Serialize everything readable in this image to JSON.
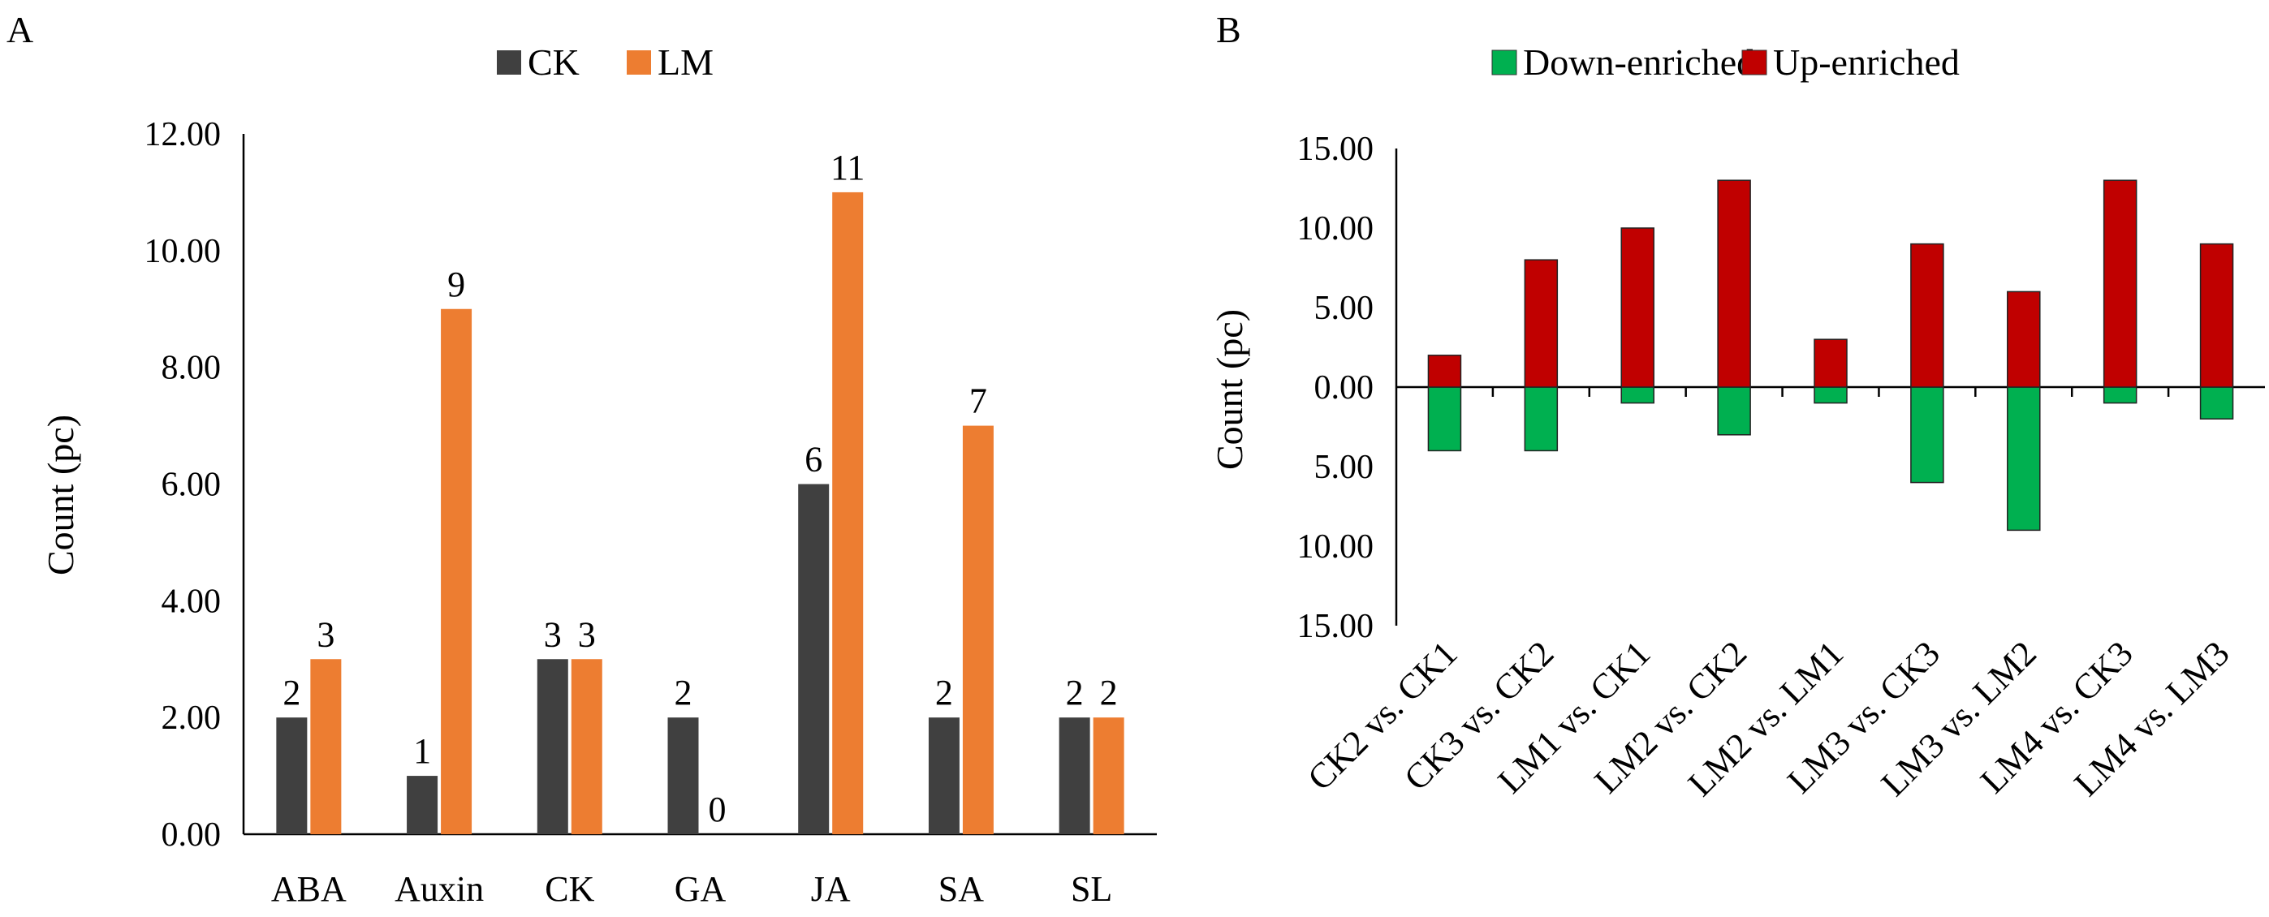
{
  "chart_data": [
    {
      "panel": "A",
      "type": "bar",
      "title": "",
      "xlabel": "",
      "ylabel": "Count (pc)",
      "ylim": [
        0,
        12
      ],
      "yticks": [
        "0.00",
        "2.00",
        "4.00",
        "6.00",
        "8.00",
        "10.00",
        "12.00"
      ],
      "categories": [
        "ABA",
        "Auxin",
        "CK",
        "GA",
        "JA",
        "SA",
        "SL"
      ],
      "series": [
        {
          "name": "CK",
          "color": "#404040",
          "values": [
            2,
            1,
            3,
            2,
            6,
            2,
            2
          ]
        },
        {
          "name": "LM",
          "color": "#ED7D31",
          "values": [
            3,
            9,
            3,
            0,
            11,
            7,
            2
          ]
        }
      ],
      "data_labels": true,
      "legend_position": "top-center"
    },
    {
      "panel": "B",
      "type": "bar",
      "title": "",
      "xlabel": "",
      "ylabel": "Count (pc)",
      "ylim": [
        -15,
        15
      ],
      "yticks_up": [
        "0.00",
        "5.00",
        "10.00",
        "15.00"
      ],
      "yticks_down": [
        "5.00",
        "10.00",
        "15.00"
      ],
      "categories": [
        "CK2 vs. CK1",
        "CK3 vs. CK2",
        "LM1 vs. CK1",
        "LM2 vs. CK2",
        "LM2 vs. LM1",
        "LM3 vs. CK3",
        "LM3 vs. LM2",
        "LM4 vs. CK3",
        "LM4 vs. LM3"
      ],
      "series": [
        {
          "name": "Down-enriched",
          "color": "#00B050",
          "values": [
            -4,
            -4,
            -1,
            -3,
            -1,
            -6,
            -9,
            -1,
            -2
          ]
        },
        {
          "name": "Up-enriched",
          "color": "#C00000",
          "values": [
            2,
            8,
            10,
            13,
            3,
            9,
            6,
            13,
            9
          ]
        }
      ],
      "negative_tick_color": "#FF0000",
      "legend_position": "top-center"
    }
  ]
}
